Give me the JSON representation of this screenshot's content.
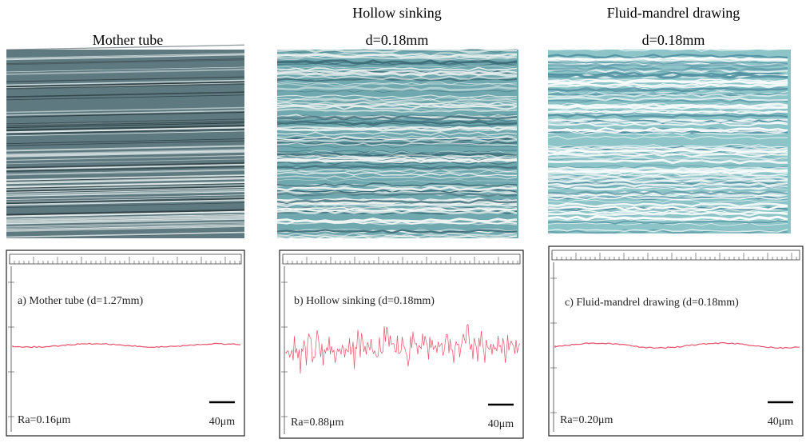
{
  "panels": [
    {
      "title": [
        "Mother tube"
      ],
      "profile_label": "a) Mother tube (d=1.27mm)",
      "ra": "Ra=0.16μm",
      "scale": "40μm"
    },
    {
      "title": [
        "Hollow sinking",
        "d=0.18mm"
      ],
      "profile_label": "b) Hollow sinking (d=0.18mm)",
      "ra": "Ra=0.88μm",
      "scale": "40μm"
    },
    {
      "title": [
        "Fluid-mandrel drawing",
        "d=0.18mm"
      ],
      "profile_label": "c) Fluid-mandrel drawing (d=0.18mm)",
      "ra": "Ra=0.20μm",
      "scale": "40μm"
    }
  ]
}
